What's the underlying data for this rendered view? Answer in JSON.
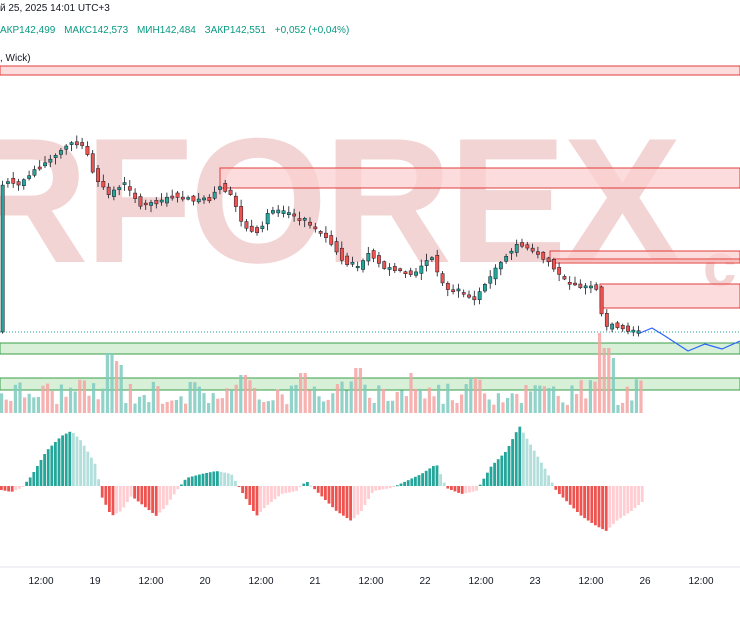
{
  "header": {
    "date_line": "й 25, 2025 14:01 UTC+3",
    "ohlc": [
      {
        "label": "",
        "value": "АКР142,499"
      },
      {
        "label": "",
        "value": "МАКС142,573"
      },
      {
        "label": "",
        "value": "МИН142,484"
      },
      {
        "label": "",
        "value": "ЗАКР142,551"
      }
    ],
    "change": "+0,052 (+0,04%)",
    "indicator_label": ", Wick)"
  },
  "watermark": {
    "text": "RFOREX",
    "suffix": "c"
  },
  "colors": {
    "up": "#26a69a",
    "down": "#ef5350",
    "vol_up": "#7fcbc0",
    "vol_down": "#f4a5a3",
    "osc_up_strong": "#26a69a",
    "osc_up_weak": "#b2dfdb",
    "osc_down_strong": "#ef5350",
    "osc_down_weak": "#ffcdd2",
    "supply_fill": "#fbd0d0",
    "supply_stroke": "#e23b3b",
    "demand_fill": "#cdeccd",
    "demand_stroke": "#3aa14a",
    "forecast": "#2962ff",
    "watermark": "#f3d4d4"
  },
  "chart_data": {
    "type": "candlestick",
    "y_axis_visible": false,
    "x_ticks": [
      "12:00",
      "19",
      "12:00",
      "20",
      "12:00",
      "21",
      "12:00",
      "22",
      "12:00",
      "23",
      "12:00",
      "26",
      "12:00"
    ],
    "supply_zones_count": 5,
    "demand_zones_count": 2,
    "forecast_path": true,
    "has_volume_panel": true,
    "has_oscillator_panel": true
  }
}
